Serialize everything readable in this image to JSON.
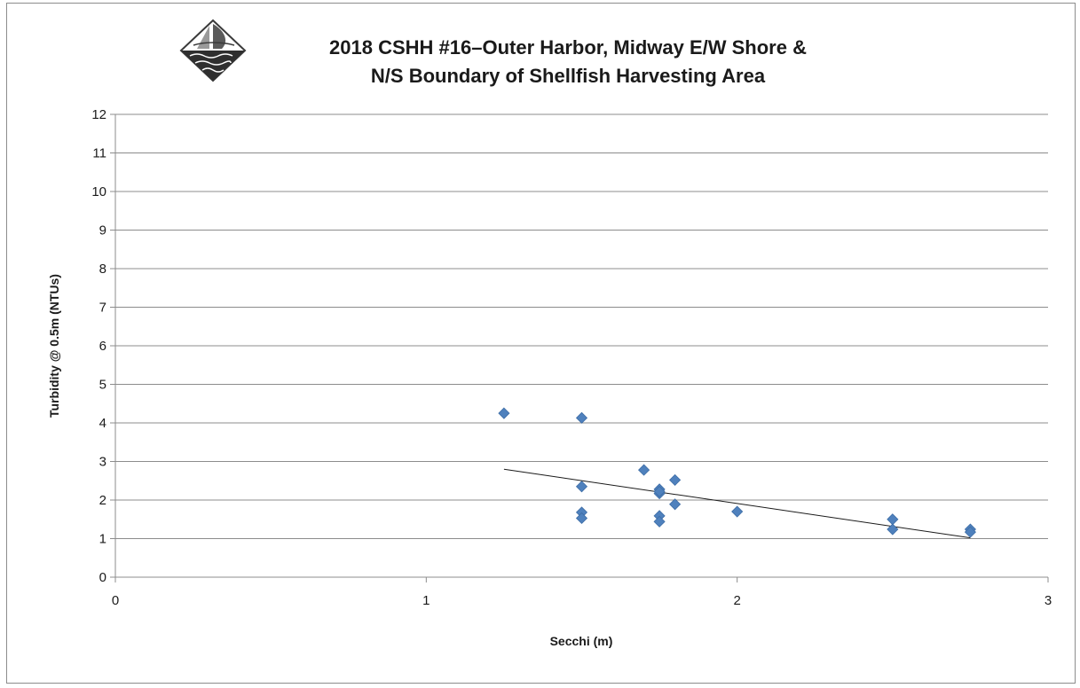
{
  "chart_data": {
    "type": "scatter",
    "title_lines": [
      "2018 CSHH #16–Outer Harbor, Midway E/W Shore &",
      "N/S Boundary of Shellfish Harvesting Area"
    ],
    "xlabel": "Secchi (m)",
    "ylabel": "Turbidity @ 0.5m  (NTUs)",
    "xlim": [
      0,
      3
    ],
    "ylim": [
      0,
      12
    ],
    "x_ticks": [
      0,
      1,
      2,
      3
    ],
    "y_ticks": [
      0,
      1,
      2,
      3,
      4,
      5,
      6,
      7,
      8,
      9,
      10,
      11,
      12
    ],
    "grid": "horizontal",
    "marker": "diamond",
    "marker_color": "#4f81bd",
    "trendline_color": "#1a1a1a",
    "series": [
      {
        "x": [
          1.25,
          1.5,
          1.5,
          1.5,
          1.5,
          1.7,
          1.75,
          1.75,
          1.75,
          1.75,
          1.75,
          1.8,
          1.8,
          2.0,
          2.5,
          2.5,
          2.75,
          2.75
        ],
        "y": [
          4.25,
          4.13,
          2.35,
          1.68,
          1.53,
          2.78,
          2.28,
          2.17,
          1.59,
          1.44,
          2.22,
          2.52,
          1.89,
          1.7,
          1.5,
          1.24,
          1.24,
          1.17
        ]
      }
    ],
    "trendline": {
      "type": "linear",
      "x": [
        1.25,
        2.75
      ],
      "y": [
        2.8,
        1.02
      ]
    }
  },
  "logo": {
    "name": "sailboat-logo"
  }
}
